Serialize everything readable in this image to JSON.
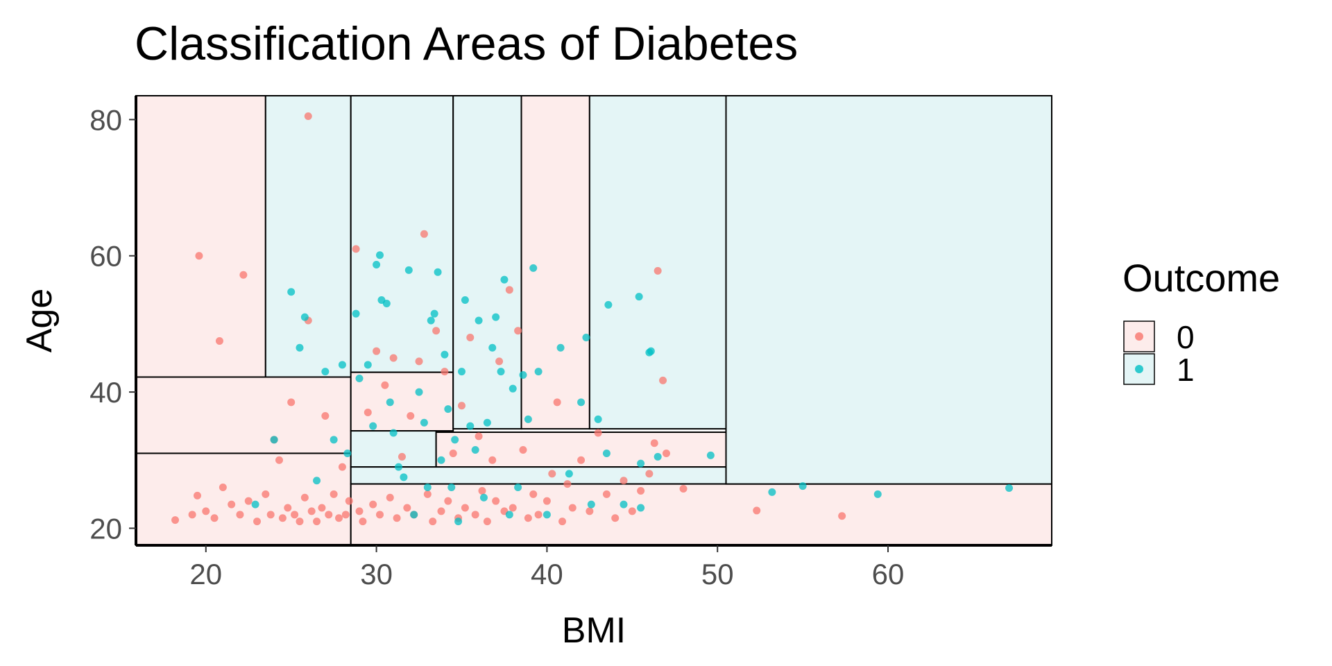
{
  "chart_data": {
    "type": "scatter",
    "title": "Classification Areas of Diabetes",
    "xlabel": "BMI",
    "ylabel": "Age",
    "xlim": [
      15.9,
      69.6
    ],
    "ylim": [
      17.5,
      83.5
    ],
    "xticks": [
      20,
      30,
      40,
      50,
      60
    ],
    "yticks": [
      20,
      40,
      60,
      80
    ],
    "grid": false,
    "legend": {
      "title": "Outcome",
      "position": "right",
      "entries": [
        {
          "label": "0",
          "color": "#F8766D"
        },
        {
          "label": "1",
          "color": "#00BFC4"
        }
      ]
    },
    "region_fill": {
      "0": "#FDECEB",
      "1": "#E4F5F6"
    },
    "regions": [
      {
        "x": [
          15.9,
          23.5
        ],
        "y": [
          42.2,
          83.5
        ],
        "class": "0"
      },
      {
        "x": [
          23.5,
          28.5
        ],
        "y": [
          42.2,
          83.5
        ],
        "class": "1"
      },
      {
        "x": [
          15.9,
          28.5
        ],
        "y": [
          31.0,
          42.2
        ],
        "class": "0"
      },
      {
        "x": [
          15.9,
          28.5
        ],
        "y": [
          17.5,
          31.0
        ],
        "class": "0"
      },
      {
        "x": [
          28.5,
          34.5
        ],
        "y": [
          42.9,
          83.5
        ],
        "class": "1"
      },
      {
        "x": [
          28.5,
          34.5
        ],
        "y": [
          34.3,
          42.9
        ],
        "class": "0"
      },
      {
        "x": [
          34.5,
          38.5
        ],
        "y": [
          34.6,
          83.5
        ],
        "class": "1"
      },
      {
        "x": [
          38.5,
          42.5
        ],
        "y": [
          34.6,
          83.5
        ],
        "class": "0"
      },
      {
        "x": [
          42.5,
          50.5
        ],
        "y": [
          34.6,
          83.5
        ],
        "class": "1"
      },
      {
        "x": [
          28.5,
          33.5
        ],
        "y": [
          29.0,
          34.3
        ],
        "class": "1"
      },
      {
        "x": [
          33.5,
          50.5
        ],
        "y": [
          29.0,
          34.1
        ],
        "class": "0"
      },
      {
        "x": [
          28.5,
          50.5
        ],
        "y": [
          26.5,
          29.0
        ],
        "class": "1"
      },
      {
        "x": [
          28.5,
          69.6
        ],
        "y": [
          17.5,
          26.5
        ],
        "class": "0"
      },
      {
        "x": [
          50.5,
          69.6
        ],
        "y": [
          26.5,
          83.5
        ],
        "class": "1"
      }
    ],
    "series": [
      {
        "name": "0",
        "color": "#F8766D",
        "points": [
          [
            18.2,
            21.2
          ],
          [
            19.2,
            22.0
          ],
          [
            19.5,
            24.8
          ],
          [
            19.6,
            60.0
          ],
          [
            20.0,
            22.5
          ],
          [
            20.5,
            21.5
          ],
          [
            20.8,
            47.5
          ],
          [
            21.0,
            26.0
          ],
          [
            21.5,
            23.5
          ],
          [
            22.0,
            22.0
          ],
          [
            22.2,
            57.2
          ],
          [
            22.5,
            24.0
          ],
          [
            23.0,
            21.0
          ],
          [
            23.5,
            25.0
          ],
          [
            23.8,
            22.0
          ],
          [
            24.0,
            33.0
          ],
          [
            24.3,
            30.0
          ],
          [
            24.5,
            21.5
          ],
          [
            24.8,
            23.0
          ],
          [
            25.0,
            38.5
          ],
          [
            25.2,
            22.0
          ],
          [
            25.5,
            21.0
          ],
          [
            25.8,
            24.5
          ],
          [
            26.0,
            50.5
          ],
          [
            26.0,
            80.5
          ],
          [
            26.2,
            22.5
          ],
          [
            26.5,
            21.0
          ],
          [
            26.8,
            23.0
          ],
          [
            27.0,
            36.5
          ],
          [
            27.2,
            22.0
          ],
          [
            27.5,
            25.0
          ],
          [
            27.8,
            21.5
          ],
          [
            28.0,
            29.0
          ],
          [
            28.2,
            22.0
          ],
          [
            28.4,
            24.0
          ],
          [
            28.8,
            61.0
          ],
          [
            29.0,
            22.5
          ],
          [
            29.2,
            21.0
          ],
          [
            29.5,
            37.0
          ],
          [
            29.8,
            23.5
          ],
          [
            30.0,
            46.0
          ],
          [
            30.2,
            22.0
          ],
          [
            30.5,
            41.0
          ],
          [
            30.8,
            24.5
          ],
          [
            31.0,
            45.0
          ],
          [
            31.2,
            21.5
          ],
          [
            31.5,
            30.5
          ],
          [
            31.8,
            23.0
          ],
          [
            32.0,
            36.5
          ],
          [
            32.2,
            22.0
          ],
          [
            32.5,
            44.5
          ],
          [
            32.8,
            63.2
          ],
          [
            33.0,
            25.0
          ],
          [
            33.3,
            21.0
          ],
          [
            33.5,
            49.0
          ],
          [
            33.8,
            22.5
          ],
          [
            34.0,
            43.0
          ],
          [
            34.2,
            24.0
          ],
          [
            34.5,
            31.0
          ],
          [
            34.8,
            21.5
          ],
          [
            35.0,
            38.0
          ],
          [
            35.2,
            23.0
          ],
          [
            35.5,
            48.0
          ],
          [
            35.8,
            22.0
          ],
          [
            36.0,
            33.5
          ],
          [
            36.2,
            25.5
          ],
          [
            36.5,
            21.0
          ],
          [
            36.8,
            30.0
          ],
          [
            37.0,
            24.0
          ],
          [
            37.2,
            44.5
          ],
          [
            37.5,
            22.5
          ],
          [
            37.8,
            55.0
          ],
          [
            38.0,
            23.0
          ],
          [
            38.3,
            49.0
          ],
          [
            38.6,
            31.5
          ],
          [
            38.9,
            21.5
          ],
          [
            39.2,
            25.0
          ],
          [
            39.5,
            22.0
          ],
          [
            40.0,
            24.0
          ],
          [
            40.3,
            28.0
          ],
          [
            40.6,
            38.5
          ],
          [
            40.9,
            21.0
          ],
          [
            41.2,
            26.5
          ],
          [
            41.5,
            23.0
          ],
          [
            42.0,
            30.0
          ],
          [
            42.5,
            22.5
          ],
          [
            43.0,
            34.0
          ],
          [
            43.5,
            25.0
          ],
          [
            44.0,
            21.5
          ],
          [
            44.5,
            27.0
          ],
          [
            45.0,
            22.5
          ],
          [
            45.5,
            25.5
          ],
          [
            46.0,
            28.0
          ],
          [
            46.3,
            32.5
          ],
          [
            46.5,
            57.8
          ],
          [
            46.8,
            41.7
          ],
          [
            47.0,
            31.0
          ],
          [
            48.0,
            25.8
          ],
          [
            52.3,
            22.6
          ],
          [
            57.3,
            21.8
          ]
        ]
      },
      {
        "name": "1",
        "color": "#00BFC4",
        "points": [
          [
            22.9,
            23.5
          ],
          [
            24.0,
            33.0
          ],
          [
            25.0,
            54.7
          ],
          [
            25.5,
            46.5
          ],
          [
            25.8,
            51.0
          ],
          [
            26.5,
            27.0
          ],
          [
            27.0,
            43.0
          ],
          [
            27.5,
            33.0
          ],
          [
            28.0,
            44.0
          ],
          [
            28.3,
            31.0
          ],
          [
            28.8,
            51.5
          ],
          [
            29.0,
            42.0
          ],
          [
            29.5,
            44.0
          ],
          [
            29.8,
            35.0
          ],
          [
            30.0,
            58.7
          ],
          [
            30.2,
            60.1
          ],
          [
            30.3,
            53.5
          ],
          [
            30.6,
            53.0
          ],
          [
            30.8,
            38.5
          ],
          [
            31.0,
            34.0
          ],
          [
            31.3,
            29.0
          ],
          [
            31.6,
            27.5
          ],
          [
            31.9,
            57.9
          ],
          [
            32.2,
            22.0
          ],
          [
            32.5,
            40.0
          ],
          [
            32.8,
            35.5
          ],
          [
            33.0,
            26.0
          ],
          [
            33.2,
            50.5
          ],
          [
            33.4,
            51.5
          ],
          [
            33.6,
            57.6
          ],
          [
            33.8,
            30.0
          ],
          [
            34.0,
            45.5
          ],
          [
            34.2,
            37.5
          ],
          [
            34.4,
            26.0
          ],
          [
            34.6,
            33.0
          ],
          [
            34.8,
            21.0
          ],
          [
            35.0,
            43.0
          ],
          [
            35.2,
            53.5
          ],
          [
            35.5,
            35.0
          ],
          [
            35.8,
            31.5
          ],
          [
            36.0,
            50.5
          ],
          [
            36.3,
            24.5
          ],
          [
            36.5,
            35.5
          ],
          [
            36.8,
            46.5
          ],
          [
            37.0,
            51.0
          ],
          [
            37.3,
            43.0
          ],
          [
            37.5,
            56.5
          ],
          [
            37.8,
            22.0
          ],
          [
            38.0,
            40.5
          ],
          [
            38.3,
            26.0
          ],
          [
            38.6,
            42.5
          ],
          [
            38.9,
            36.0
          ],
          [
            39.2,
            58.2
          ],
          [
            39.5,
            43.0
          ],
          [
            40.0,
            22.0
          ],
          [
            40.8,
            46.5
          ],
          [
            41.3,
            28.0
          ],
          [
            42.0,
            38.5
          ],
          [
            42.3,
            48.0
          ],
          [
            42.6,
            23.5
          ],
          [
            43.0,
            36.0
          ],
          [
            43.5,
            31.0
          ],
          [
            43.6,
            52.8
          ],
          [
            44.5,
            23.5
          ],
          [
            45.4,
            54.0
          ],
          [
            45.5,
            23.0
          ],
          [
            45.5,
            29.5
          ],
          [
            46.0,
            45.8
          ],
          [
            46.1,
            46.0
          ],
          [
            46.5,
            30.5
          ],
          [
            49.6,
            30.7
          ],
          [
            53.2,
            25.3
          ],
          [
            55.0,
            26.2
          ],
          [
            59.4,
            25.0
          ],
          [
            67.1,
            25.9
          ]
        ]
      }
    ]
  }
}
